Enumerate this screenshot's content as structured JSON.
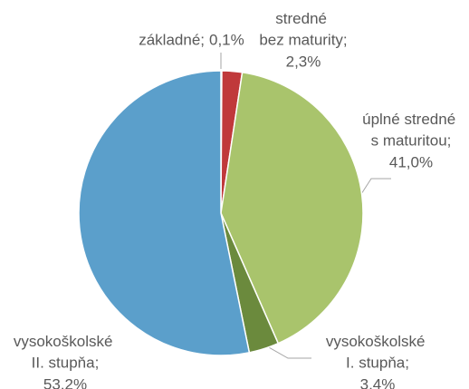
{
  "chart_data": {
    "type": "pie",
    "categories": [
      "základné;",
      "stredné bez maturity;",
      "úplné stredné s maturitou;",
      "vysokoškolské I. stupňa;",
      "vysokoškolské II. stupňa;"
    ],
    "values": [
      0.1,
      2.3,
      41.0,
      3.4,
      53.2
    ],
    "value_labels": [
      "0,1%",
      "2,3%",
      "41,0%",
      "3,4%",
      "53,2%"
    ],
    "colors": [
      "#e3a53f",
      "#c0393b",
      "#a9c46c",
      "#6b8a3d",
      "#5b9fcb"
    ]
  }
}
